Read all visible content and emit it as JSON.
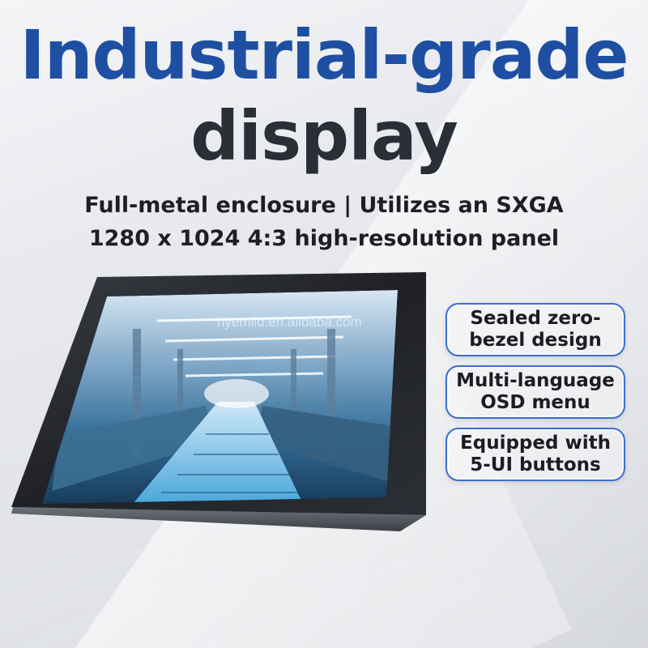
{
  "headline": {
    "line1": "Industrial-grade",
    "line2": "display"
  },
  "subheadline": {
    "line1": "Full-metal enclosure | Utilizes an SXGA",
    "line2": "1280 x 1024 4:3  high-resolution panel"
  },
  "watermark": "hyemild.en.alibaba.com",
  "features": [
    {
      "label": "Sealed zero-\nbezel design"
    },
    {
      "label": "Multi-language\nOSD menu"
    },
    {
      "label": "Equipped with\n5-UI buttons"
    }
  ],
  "colors": {
    "headline_blue": "#1f4fa3",
    "headline_dark": "#2a2e37",
    "feature_border": "#3a6fd0"
  },
  "icons": {
    "product": "industrial-monitor-icon",
    "screen_content": "factory-production-line-image"
  }
}
